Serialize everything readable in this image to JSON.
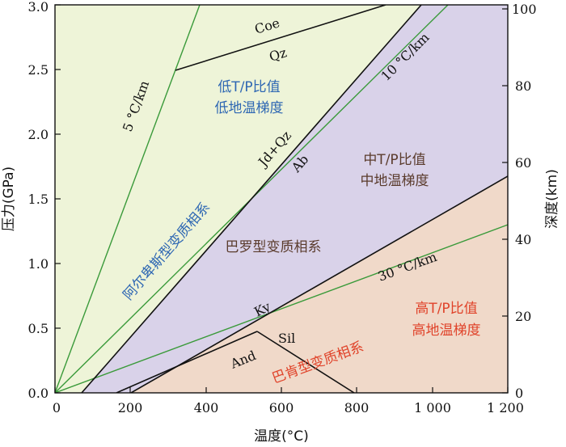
{
  "axes": {
    "x_title": "温度(°C)",
    "y_left_title": "压力(GPa)",
    "y_right_title": "深度(km)",
    "x_ticks": [
      "0",
      "200",
      "400",
      "600",
      "800",
      "1 000",
      "1 200"
    ],
    "y_left_ticks": [
      "0.0",
      "0.5",
      "1.0",
      "1.5",
      "2.0",
      "2.5",
      "3.0"
    ],
    "y_right_ticks": [
      "0",
      "20",
      "40",
      "60",
      "80",
      "100"
    ]
  },
  "minerals": {
    "coe": "Coe",
    "qz": "Qz",
    "jd_qz": "Jd+Qz",
    "ab": "Ab",
    "ky": "Ky",
    "sil": "Sil",
    "and": "And"
  },
  "gradients": {
    "g5": "5 °C/km",
    "g10": "10 °C/km",
    "g30": "30 °C/km"
  },
  "zones": {
    "low_line1": "低T/P比值",
    "low_line2": "低地温梯度",
    "mid_line1": "中T/P比值",
    "mid_line2": "中地温梯度",
    "high_line1": "高T/P比值",
    "high_line2": "高地温梯度",
    "alps": "阿尔卑斯型变质相系",
    "barrovian": "巴罗型变质相系",
    "buchan": "巴肯型变质相系"
  },
  "colors": {
    "low_zone": "#eef4d8",
    "mid_zone": "#d9d2e9",
    "high_zone": "#f0d9c9",
    "geotherm": "#3a9a3a",
    "blue_text": "#2e67b3",
    "red_text": "#e0432a"
  }
}
